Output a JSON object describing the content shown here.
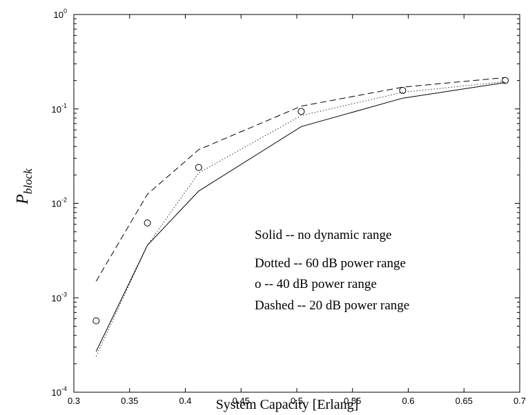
{
  "chart_data": {
    "type": "line",
    "xlabel": "System Capacity [Erlang]",
    "ylabel": {
      "main": "P",
      "sub": "block"
    },
    "xlim": [
      0.3,
      0.7
    ],
    "ylim": [
      0.0001,
      1
    ],
    "yscale": "log",
    "grid": false,
    "x_ticks": [
      "0.3",
      "0.35",
      "0.4",
      "0.45",
      "0.5",
      "0.55",
      "0.6",
      "0.65",
      "0.7"
    ],
    "y_ticks": [
      {
        "base": "10",
        "exp": "-4"
      },
      {
        "base": "10",
        "exp": "-3"
      },
      {
        "base": "10",
        "exp": "-2"
      },
      {
        "base": "10",
        "exp": "-1"
      },
      {
        "base": "10",
        "exp": "0"
      }
    ],
    "series": [
      {
        "style": "solid",
        "color": "#000000",
        "x": [
          0.32,
          0.366,
          0.412,
          0.504,
          0.595,
          0.687
        ],
        "y": [
          0.00027,
          0.0036,
          0.0135,
          0.065,
          0.13,
          0.19
        ]
      },
      {
        "style": "dotted",
        "color": "#000000",
        "x": [
          0.32,
          0.366,
          0.412,
          0.504,
          0.595,
          0.687
        ],
        "y": [
          0.00024,
          0.0036,
          0.021,
          0.085,
          0.15,
          0.195
        ]
      },
      {
        "style": "marker-circle",
        "color": "#000000",
        "x": [
          0.32,
          0.366,
          0.412,
          0.504,
          0.595,
          0.687
        ],
        "y": [
          0.00057,
          0.0062,
          0.024,
          0.094,
          0.157,
          0.2
        ]
      },
      {
        "style": "dashed",
        "color": "#000000",
        "x": [
          0.32,
          0.366,
          0.412,
          0.504,
          0.595,
          0.687
        ],
        "y": [
          0.0015,
          0.0125,
          0.037,
          0.107,
          0.17,
          0.215
        ]
      }
    ],
    "annotations": [
      "Solid -- no dynamic range",
      "Dotted -- 60 dB power range",
      "o -- 40 dB power range",
      "Dashed -- 20 dB power range"
    ]
  }
}
